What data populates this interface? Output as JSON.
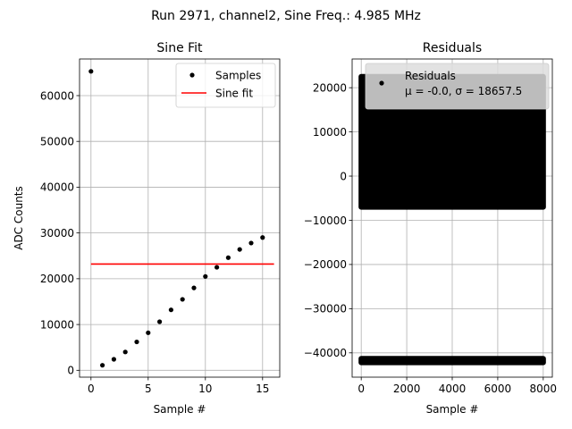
{
  "figure": {
    "suptitle": "Run 2971, channel2, Sine Freq.: 4.985 MHz"
  },
  "chart_data": [
    {
      "type": "scatter",
      "title": "Sine Fit",
      "xlabel": "Sample #",
      "ylabel": "ADC Counts",
      "xlim": [
        -1,
        16.5
      ],
      "ylim": [
        -1500,
        68000
      ],
      "xticks": [
        0,
        5,
        10,
        15
      ],
      "yticks": [
        0,
        10000,
        20000,
        30000,
        40000,
        50000,
        60000
      ],
      "grid": true,
      "legend_position": "top-right",
      "series": [
        {
          "name": "Samples",
          "kind": "points",
          "color": "#000000",
          "x": [
            0,
            1,
            2,
            3,
            4,
            5,
            6,
            7,
            8,
            9,
            10,
            11,
            12,
            13,
            14,
            15
          ],
          "y": [
            65300,
            1100,
            2400,
            4000,
            6200,
            8200,
            10600,
            13200,
            15500,
            18000,
            20500,
            22500,
            24600,
            26400,
            27800,
            29000
          ]
        },
        {
          "name": "Sine fit",
          "kind": "line",
          "color": "#ff0000",
          "x": [
            0,
            16
          ],
          "y": [
            23200,
            23200
          ]
        }
      ]
    },
    {
      "type": "scatter",
      "title": "Residuals",
      "xlabel": "Sample #",
      "ylabel": "",
      "xlim": [
        -400,
        8400
      ],
      "ylim": [
        -45500,
        26500
      ],
      "xticks": [
        0,
        2000,
        4000,
        6000,
        8000
      ],
      "yticks": [
        -40000,
        -30000,
        -20000,
        -10000,
        0,
        10000,
        20000
      ],
      "grid": true,
      "legend_position": "top-right",
      "legend_labels": [
        "Residuals",
        "μ = -0.0, σ = 18657.5"
      ],
      "series": [
        {
          "name": "Residuals",
          "kind": "dense-band",
          "color": "#000000",
          "x_range": [
            0,
            8000
          ],
          "bands": [
            {
              "y_min": -7000,
              "y_max": 22500
            },
            {
              "y_min": -42200,
              "y_max": -41300
            }
          ]
        }
      ]
    }
  ]
}
